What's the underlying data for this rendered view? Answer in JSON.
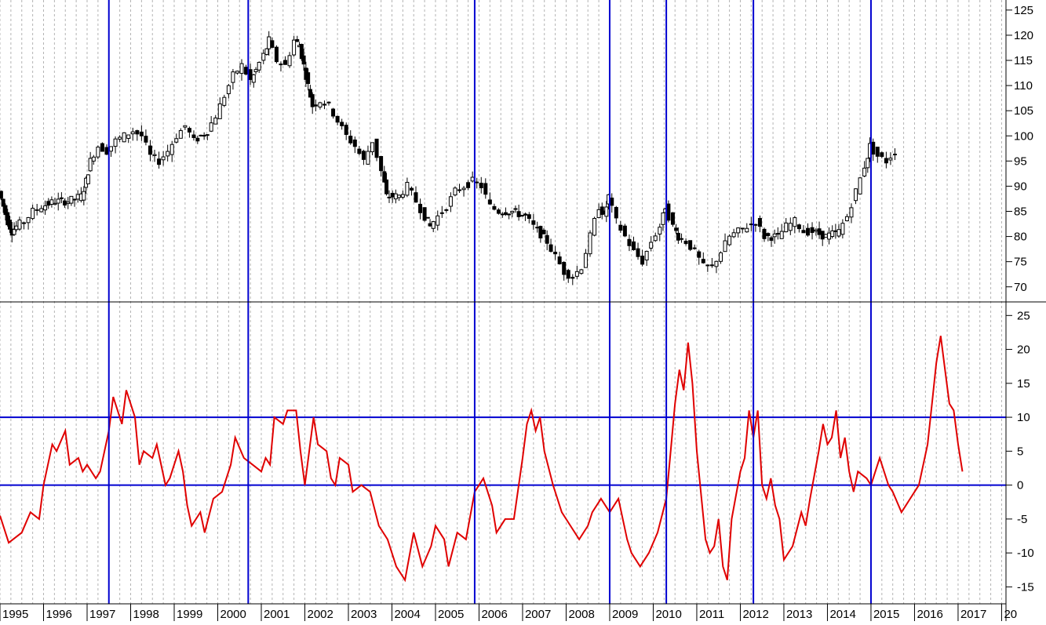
{
  "chart_data": [
    {
      "type": "candlestick",
      "ylim": [
        67,
        127
      ],
      "yticks": [
        70,
        75,
        80,
        85,
        90,
        95,
        100,
        105,
        110,
        115,
        120,
        125
      ],
      "x_range": [
        1995.0,
        2018.1
      ],
      "grid": true,
      "colors": {
        "candle": "#000000",
        "grid": "#b4b4b4"
      },
      "monthly_close": [
        [
          1995.0,
          89
        ],
        [
          1995.1,
          86
        ],
        [
          1995.2,
          83
        ],
        [
          1995.3,
          81
        ],
        [
          1995.4,
          82
        ],
        [
          1995.6,
          83
        ],
        [
          1995.8,
          85
        ],
        [
          1996.0,
          86
        ],
        [
          1996.3,
          87
        ],
        [
          1996.6,
          87
        ],
        [
          1996.9,
          88
        ],
        [
          1997.0,
          91
        ],
        [
          1997.1,
          95
        ],
        [
          1997.3,
          98
        ],
        [
          1997.5,
          97
        ],
        [
          1997.7,
          99
        ],
        [
          1997.9,
          100
        ],
        [
          1998.1,
          101
        ],
        [
          1998.3,
          100
        ],
        [
          1998.5,
          96
        ],
        [
          1998.7,
          95
        ],
        [
          1998.9,
          97
        ],
        [
          1999.1,
          100
        ],
        [
          1999.3,
          102
        ],
        [
          1999.5,
          99
        ],
        [
          1999.8,
          101
        ],
        [
          2000.0,
          104
        ],
        [
          2000.2,
          108
        ],
        [
          2000.4,
          112
        ],
        [
          2000.6,
          114
        ],
        [
          2000.8,
          111
        ],
        [
          2000.9,
          113
        ],
        [
          2001.1,
          116
        ],
        [
          2001.2,
          119
        ],
        [
          2001.4,
          115
        ],
        [
          2001.6,
          114
        ],
        [
          2001.8,
          119
        ],
        [
          2001.9,
          118
        ],
        [
          2002.0,
          114
        ],
        [
          2002.1,
          110
        ],
        [
          2002.2,
          106
        ],
        [
          2002.4,
          107
        ],
        [
          2002.6,
          106
        ],
        [
          2002.8,
          103
        ],
        [
          2003.0,
          100
        ],
        [
          2003.2,
          98
        ],
        [
          2003.4,
          95
        ],
        [
          2003.6,
          99
        ],
        [
          2003.8,
          93
        ],
        [
          2003.9,
          88
        ],
        [
          2004.2,
          88
        ],
        [
          2004.4,
          90
        ],
        [
          2004.6,
          87
        ],
        [
          2004.8,
          84
        ],
        [
          2004.9,
          82
        ],
        [
          2005.1,
          84
        ],
        [
          2005.3,
          86
        ],
        [
          2005.5,
          89
        ],
        [
          2005.7,
          90
        ],
        [
          2005.9,
          91
        ],
        [
          2006.1,
          90
        ],
        [
          2006.3,
          86
        ],
        [
          2006.5,
          85
        ],
        [
          2006.8,
          85
        ],
        [
          2007.1,
          84
        ],
        [
          2007.3,
          82
        ],
        [
          2007.6,
          79
        ],
        [
          2007.8,
          76
        ],
        [
          2008.0,
          73
        ],
        [
          2008.2,
          72
        ],
        [
          2008.4,
          74
        ],
        [
          2008.6,
          80
        ],
        [
          2008.8,
          86
        ],
        [
          2008.9,
          84
        ],
        [
          2009.0,
          88
        ],
        [
          2009.2,
          83
        ],
        [
          2009.4,
          80
        ],
        [
          2009.6,
          77
        ],
        [
          2009.8,
          75
        ],
        [
          2010.0,
          79
        ],
        [
          2010.2,
          82
        ],
        [
          2010.3,
          86
        ],
        [
          2010.5,
          82
        ],
        [
          2010.6,
          80
        ],
        [
          2010.8,
          79
        ],
        [
          2011.0,
          77
        ],
        [
          2011.2,
          74
        ],
        [
          2011.4,
          74
        ],
        [
          2011.6,
          77
        ],
        [
          2011.8,
          80
        ],
        [
          2012.0,
          81
        ],
        [
          2012.2,
          82
        ],
        [
          2012.4,
          83
        ],
        [
          2012.6,
          80
        ],
        [
          2012.9,
          80
        ],
        [
          2013.1,
          82
        ],
        [
          2013.3,
          83
        ],
        [
          2013.5,
          81
        ],
        [
          2013.7,
          81
        ],
        [
          2014.0,
          80
        ],
        [
          2014.3,
          81
        ],
        [
          2014.5,
          84
        ],
        [
          2014.7,
          89
        ],
        [
          2014.9,
          94
        ],
        [
          2015.0,
          98
        ],
        [
          2015.2,
          96
        ],
        [
          2015.4,
          95
        ],
        [
          2015.6,
          97
        ]
      ]
    },
    {
      "type": "line",
      "ylim": [
        -17.5,
        27
      ],
      "yticks": [
        -15,
        -10,
        -5,
        0,
        5,
        10,
        15,
        20,
        25
      ],
      "x_range": [
        1995.0,
        2018.1
      ],
      "reference_lines": [
        0,
        10
      ],
      "grid": true,
      "colors": {
        "line": "#e00000",
        "reference": "#0000d0",
        "grid": "#b4b4b4"
      },
      "series": [
        {
          "color": "#e00000",
          "points": [
            [
              1995.0,
              -4.5
            ],
            [
              1995.2,
              -8.5
            ],
            [
              1995.5,
              -7
            ],
            [
              1995.7,
              -4
            ],
            [
              1995.9,
              -5
            ],
            [
              1996.0,
              0
            ],
            [
              1996.2,
              6
            ],
            [
              1996.3,
              5
            ],
            [
              1996.5,
              8
            ],
            [
              1996.6,
              3
            ],
            [
              1996.8,
              4
            ],
            [
              1996.9,
              2
            ],
            [
              1997.0,
              3
            ],
            [
              1997.2,
              1
            ],
            [
              1997.3,
              2
            ],
            [
              1997.5,
              8
            ],
            [
              1997.6,
              13
            ],
            [
              1997.8,
              9
            ],
            [
              1997.9,
              14
            ],
            [
              1998.1,
              10
            ],
            [
              1998.2,
              3
            ],
            [
              1998.3,
              5
            ],
            [
              1998.5,
              4
            ],
            [
              1998.6,
              6
            ],
            [
              1998.8,
              0
            ],
            [
              1998.9,
              1
            ],
            [
              1999.1,
              5
            ],
            [
              1999.2,
              2
            ],
            [
              1999.3,
              -3
            ],
            [
              1999.4,
              -6
            ],
            [
              1999.6,
              -4
            ],
            [
              1999.7,
              -7
            ],
            [
              1999.9,
              -2
            ],
            [
              2000.1,
              -1
            ],
            [
              2000.3,
              3
            ],
            [
              2000.4,
              7
            ],
            [
              2000.6,
              4
            ],
            [
              2000.8,
              3
            ],
            [
              2001.0,
              2
            ],
            [
              2001.1,
              4
            ],
            [
              2001.2,
              3
            ],
            [
              2001.3,
              10
            ],
            [
              2001.5,
              9
            ],
            [
              2001.6,
              11
            ],
            [
              2001.8,
              11
            ],
            [
              2001.9,
              5
            ],
            [
              2002.0,
              0
            ],
            [
              2002.2,
              10
            ],
            [
              2002.3,
              6
            ],
            [
              2002.5,
              5
            ],
            [
              2002.6,
              1
            ],
            [
              2002.7,
              0
            ],
            [
              2002.8,
              4
            ],
            [
              2003.0,
              3
            ],
            [
              2003.1,
              -1
            ],
            [
              2003.3,
              0
            ],
            [
              2003.5,
              -1
            ],
            [
              2003.7,
              -6
            ],
            [
              2003.9,
              -8
            ],
            [
              2004.1,
              -12
            ],
            [
              2004.3,
              -14
            ],
            [
              2004.5,
              -7
            ],
            [
              2004.7,
              -12
            ],
            [
              2004.9,
              -9
            ],
            [
              2005.0,
              -6
            ],
            [
              2005.2,
              -8
            ],
            [
              2005.3,
              -12
            ],
            [
              2005.5,
              -7
            ],
            [
              2005.7,
              -8
            ],
            [
              2005.9,
              -1
            ],
            [
              2006.1,
              1
            ],
            [
              2006.3,
              -3
            ],
            [
              2006.4,
              -7
            ],
            [
              2006.6,
              -5
            ],
            [
              2006.8,
              -5
            ],
            [
              2007.0,
              4
            ],
            [
              2007.1,
              9
            ],
            [
              2007.2,
              11
            ],
            [
              2007.3,
              8
            ],
            [
              2007.4,
              10
            ],
            [
              2007.5,
              5
            ],
            [
              2007.7,
              0
            ],
            [
              2007.9,
              -4
            ],
            [
              2008.1,
              -6
            ],
            [
              2008.3,
              -8
            ],
            [
              2008.5,
              -6
            ],
            [
              2008.6,
              -4
            ],
            [
              2008.8,
              -2
            ],
            [
              2009.0,
              -4
            ],
            [
              2009.2,
              -2
            ],
            [
              2009.4,
              -8
            ],
            [
              2009.5,
              -10
            ],
            [
              2009.7,
              -12
            ],
            [
              2009.9,
              -10
            ],
            [
              2010.1,
              -7
            ],
            [
              2010.3,
              -2
            ],
            [
              2010.4,
              5
            ],
            [
              2010.5,
              12
            ],
            [
              2010.6,
              17
            ],
            [
              2010.7,
              14
            ],
            [
              2010.8,
              21
            ],
            [
              2010.9,
              15
            ],
            [
              2011.0,
              5
            ],
            [
              2011.2,
              -8
            ],
            [
              2011.3,
              -10
            ],
            [
              2011.4,
              -9
            ],
            [
              2011.5,
              -5
            ],
            [
              2011.6,
              -12
            ],
            [
              2011.7,
              -14
            ],
            [
              2011.8,
              -5
            ],
            [
              2012.0,
              2
            ],
            [
              2012.1,
              4
            ],
            [
              2012.2,
              11
            ],
            [
              2012.3,
              7
            ],
            [
              2012.4,
              11
            ],
            [
              2012.5,
              0
            ],
            [
              2012.6,
              -2
            ],
            [
              2012.7,
              1
            ],
            [
              2012.8,
              -3
            ],
            [
              2012.9,
              -5
            ],
            [
              2013.0,
              -11
            ],
            [
              2013.2,
              -9
            ],
            [
              2013.4,
              -4
            ],
            [
              2013.5,
              -6
            ],
            [
              2013.6,
              -2
            ],
            [
              2013.8,
              5
            ],
            [
              2013.9,
              9
            ],
            [
              2014.0,
              6
            ],
            [
              2014.1,
              7
            ],
            [
              2014.2,
              11
            ],
            [
              2014.3,
              4
            ],
            [
              2014.4,
              7
            ],
            [
              2014.5,
              2
            ],
            [
              2014.6,
              -1
            ],
            [
              2014.7,
              2
            ],
            [
              2014.9,
              1
            ],
            [
              2015.0,
              0
            ],
            [
              2015.1,
              2
            ],
            [
              2015.2,
              4
            ],
            [
              2015.4,
              0
            ],
            [
              2015.5,
              -1
            ],
            [
              2015.7,
              -4
            ],
            [
              2015.8,
              -3
            ],
            [
              2015.9,
              -2
            ],
            [
              2016.1,
              0
            ],
            [
              2016.3,
              6
            ],
            [
              2016.4,
              12
            ],
            [
              2016.5,
              18
            ],
            [
              2016.6,
              22
            ],
            [
              2016.7,
              17
            ],
            [
              2016.8,
              12
            ],
            [
              2016.9,
              11
            ],
            [
              2017.0,
              6
            ],
            [
              2017.1,
              2
            ]
          ]
        }
      ]
    }
  ],
  "x_axis": {
    "tick_labels": [
      "1995",
      "1996",
      "1997",
      "1998",
      "1999",
      "2000",
      "2001",
      "2002",
      "2003",
      "2004",
      "2005",
      "2006",
      "2007",
      "2008",
      "2009",
      "2010",
      "2011",
      "2012",
      "2013",
      "2014",
      "2015",
      "2016",
      "2017",
      "20"
    ]
  },
  "event_markers": [
    1997.5,
    2000.7,
    2005.9,
    2009.0,
    2010.3,
    2012.3,
    2015.0
  ],
  "colors": {
    "marker": "#0000d0",
    "text": "#000000",
    "background": "#ffffff"
  }
}
